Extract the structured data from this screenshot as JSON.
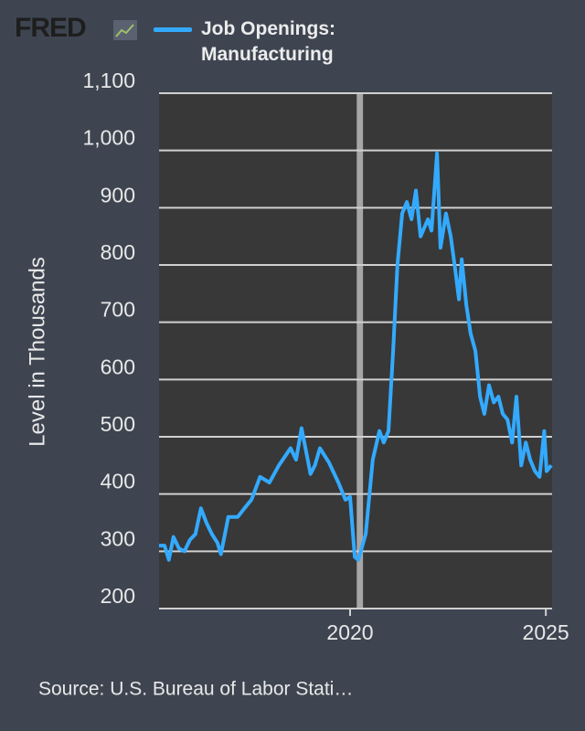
{
  "logo": "FRED",
  "chart_data": {
    "type": "line",
    "y_label": "Level in Thousands",
    "source": "Source: U.S. Bureau of Labor Stati…",
    "x": [
      2015.12,
      2015.26,
      2015.37,
      2015.49,
      2015.63,
      2015.77,
      2015.91,
      2016.05,
      2016.19,
      2016.33,
      2016.47,
      2016.61,
      2016.7,
      2016.89,
      2017.13,
      2017.3,
      2017.48,
      2017.7,
      2017.94,
      2018.18,
      2018.48,
      2018.62,
      2018.76,
      2018.99,
      2019.1,
      2019.23,
      2019.46,
      2019.7,
      2019.88,
      2020.0,
      2020.12,
      2020.21,
      2020.4,
      2020.58,
      2020.75,
      2020.86,
      2020.98,
      2021.1,
      2021.21,
      2021.33,
      2021.45,
      2021.57,
      2021.68,
      2021.8,
      2021.99,
      2022.08,
      2022.22,
      2022.31,
      2022.45,
      2022.57,
      2022.69,
      2022.78,
      2022.85,
      2022.97,
      2023.08,
      2023.2,
      2023.32,
      2023.43,
      2023.55,
      2023.67,
      2023.79,
      2023.9,
      2024.02,
      2024.14,
      2024.25,
      2024.37,
      2024.49,
      2024.6,
      2024.72,
      2024.84,
      2024.96,
      2025.02,
      2025.14
    ],
    "series": [
      {
        "name": "Job Openings: Manufacturing",
        "color": "#33aaff",
        "values": [
          310,
          310,
          285,
          325,
          305,
          300,
          320,
          330,
          375,
          350,
          330,
          315,
          295,
          360,
          360,
          375,
          390,
          430,
          420,
          450,
          480,
          460,
          515,
          435,
          450,
          480,
          455,
          420,
          390,
          395,
          290,
          285,
          330,
          460,
          510,
          490,
          510,
          650,
          800,
          890,
          910,
          880,
          930,
          850,
          880,
          860,
          995,
          830,
          890,
          850,
          790,
          740,
          810,
          730,
          680,
          650,
          570,
          540,
          590,
          560,
          570,
          540,
          530,
          490,
          570,
          450,
          490,
          460,
          440,
          430,
          510,
          440,
          450
        ]
      }
    ],
    "xlim": [
      2015.12,
      2025.16
    ],
    "xticks": [
      2020,
      2025
    ],
    "ylim": [
      200,
      1100
    ],
    "yticks": [
      200,
      300,
      400,
      500,
      600,
      700,
      800,
      900,
      {
        "value": 1000,
        "label": "1,000"
      },
      {
        "value": 1100,
        "label": "1,100"
      }
    ],
    "recessions": [
      [
        2020.17,
        2020.33
      ]
    ],
    "recession_color": "#a6a6a6",
    "grid": true
  }
}
